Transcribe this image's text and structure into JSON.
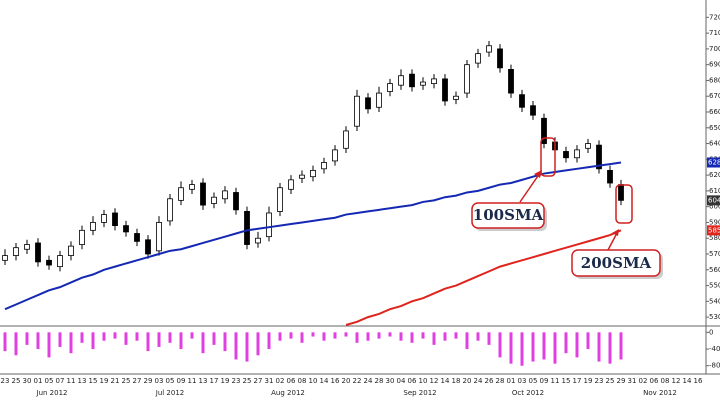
{
  "chart_data": [
    {
      "type": "candlestick",
      "x": [
        "23",
        "25",
        "30",
        "01",
        "05",
        "07",
        "11",
        "13",
        "15",
        "19",
        "21",
        "25",
        "27",
        "29",
        "03",
        "05",
        "09",
        "11",
        "13",
        "17",
        "19",
        "23",
        "25",
        "27",
        "31",
        "02",
        "06",
        "08",
        "10",
        "14",
        "16",
        "20",
        "22",
        "24",
        "28",
        "30",
        "04",
        "06",
        "10",
        "12",
        "14",
        "18",
        "20",
        "24",
        "26",
        "28",
        "01",
        "03",
        "05",
        "09",
        "11",
        "15",
        "17",
        "19",
        "23",
        "25",
        "29",
        "31",
        "02",
        "06",
        "08",
        "12",
        "14",
        "16"
      ],
      "month_labels": [
        "Jun 2012",
        "Jul 2012",
        "Aug 2012",
        "Sep 2012",
        "Oct 2012",
        "Nov 2012"
      ],
      "open": [
        566,
        569,
        573,
        577,
        566,
        562,
        569,
        576,
        585,
        590,
        596,
        588,
        583,
        579,
        572,
        591,
        604,
        611,
        615,
        602,
        605,
        609,
        597,
        577,
        581,
        597,
        611,
        618,
        619,
        624,
        629,
        637,
        651,
        669,
        663,
        673,
        677,
        684,
        677,
        678,
        681,
        668,
        672,
        691,
        698,
        700,
        687,
        671,
        664,
        656,
        641,
        635,
        631,
        637,
        639,
        623,
        614,
        null,
        null,
        null,
        null,
        null,
        null,
        null
      ],
      "high": [
        573,
        577,
        579,
        580,
        569,
        572,
        578,
        588,
        594,
        598,
        599,
        591,
        586,
        582,
        594,
        608,
        616,
        617,
        618,
        609,
        613,
        612,
        600,
        584,
        600,
        615,
        620,
        623,
        626,
        631,
        639,
        651,
        674,
        672,
        676,
        681,
        687,
        687,
        682,
        684,
        684,
        673,
        693,
        700,
        705,
        703,
        690,
        674,
        667,
        659,
        644,
        638,
        639,
        643,
        642,
        626,
        617,
        null,
        null,
        null,
        null,
        null,
        null,
        null
      ],
      "low": [
        563,
        566,
        570,
        562,
        560,
        559,
        566,
        573,
        582,
        587,
        585,
        581,
        575,
        567,
        569,
        588,
        601,
        608,
        598,
        599,
        602,
        595,
        573,
        574,
        578,
        594,
        608,
        615,
        616,
        621,
        626,
        634,
        648,
        659,
        660,
        670,
        674,
        673,
        674,
        675,
        664,
        665,
        669,
        688,
        695,
        685,
        669,
        660,
        655,
        637,
        633,
        628,
        628,
        634,
        621,
        612,
        601,
        null,
        null,
        null,
        null,
        null,
        null,
        null
      ],
      "close": [
        569,
        574,
        576,
        565,
        563,
        569,
        575,
        585,
        590,
        595,
        588,
        584,
        578,
        570,
        590,
        605,
        612,
        614,
        601,
        606,
        610,
        598,
        576,
        580,
        596,
        612,
        617,
        620,
        623,
        628,
        636,
        648,
        670,
        662,
        672,
        678,
        683,
        676,
        679,
        681,
        667,
        670,
        690,
        697,
        702,
        688,
        672,
        663,
        658,
        640,
        636,
        631,
        636,
        640,
        624,
        615,
        604,
        null,
        null,
        null,
        null,
        null,
        null,
        null
      ],
      "series": [
        {
          "name": "100SMA",
          "color": "#1428b4",
          "values": [
            535,
            538,
            541,
            544,
            547,
            549,
            552,
            555,
            557,
            560,
            562,
            564,
            566,
            568,
            570,
            572,
            573,
            575,
            577,
            579,
            581,
            583,
            585,
            586,
            587,
            588,
            589,
            590,
            591,
            592,
            593,
            595,
            596,
            597,
            598,
            599,
            600,
            601,
            603,
            604,
            606,
            607,
            609,
            610,
            612,
            614,
            615,
            617,
            619,
            621,
            622,
            623,
            624,
            625,
            626,
            627,
            628,
            null,
            null,
            null,
            null,
            null,
            null,
            null
          ]
        },
        {
          "name": "200SMA",
          "color": "#e0241c",
          "values": [
            null,
            null,
            null,
            null,
            null,
            null,
            null,
            null,
            null,
            null,
            null,
            null,
            null,
            null,
            null,
            null,
            null,
            null,
            null,
            null,
            null,
            null,
            null,
            null,
            null,
            null,
            null,
            null,
            null,
            null,
            null,
            525,
            527,
            530,
            532,
            535,
            537,
            540,
            542,
            545,
            548,
            550,
            553,
            556,
            559,
            562,
            564,
            566,
            568,
            570,
            572,
            574,
            576,
            578,
            580,
            582,
            585,
            null,
            null,
            null,
            null,
            null,
            null,
            null
          ]
        }
      ],
      "ylim": [
        525,
        731
      ],
      "yticks": [
        530,
        540,
        550,
        560,
        570,
        580,
        590,
        600,
        610,
        620,
        630,
        640,
        650,
        660,
        670,
        680,
        690,
        700,
        710,
        720
      ]
    },
    {
      "type": "bar",
      "color": "#e040e0",
      "values": [
        -45,
        -55,
        -30,
        -40,
        -60,
        -35,
        -50,
        -25,
        -40,
        -20,
        -15,
        -30,
        -20,
        -45,
        -35,
        -25,
        -40,
        -15,
        -50,
        -30,
        -45,
        -65,
        -70,
        -55,
        -40,
        -20,
        -15,
        -25,
        -10,
        -20,
        -15,
        -10,
        -25,
        -20,
        -15,
        -10,
        -20,
        -25,
        -15,
        -30,
        -20,
        -15,
        -40,
        -20,
        -30,
        -60,
        -75,
        -80,
        -70,
        -65,
        -75,
        -50,
        -60,
        -40,
        -70,
        -75,
        -65,
        null,
        null,
        null,
        null,
        null,
        null,
        null
      ],
      "ylim": [
        -95,
        8
      ],
      "yticks": [
        0,
        -40,
        -80
      ]
    }
  ]
}
